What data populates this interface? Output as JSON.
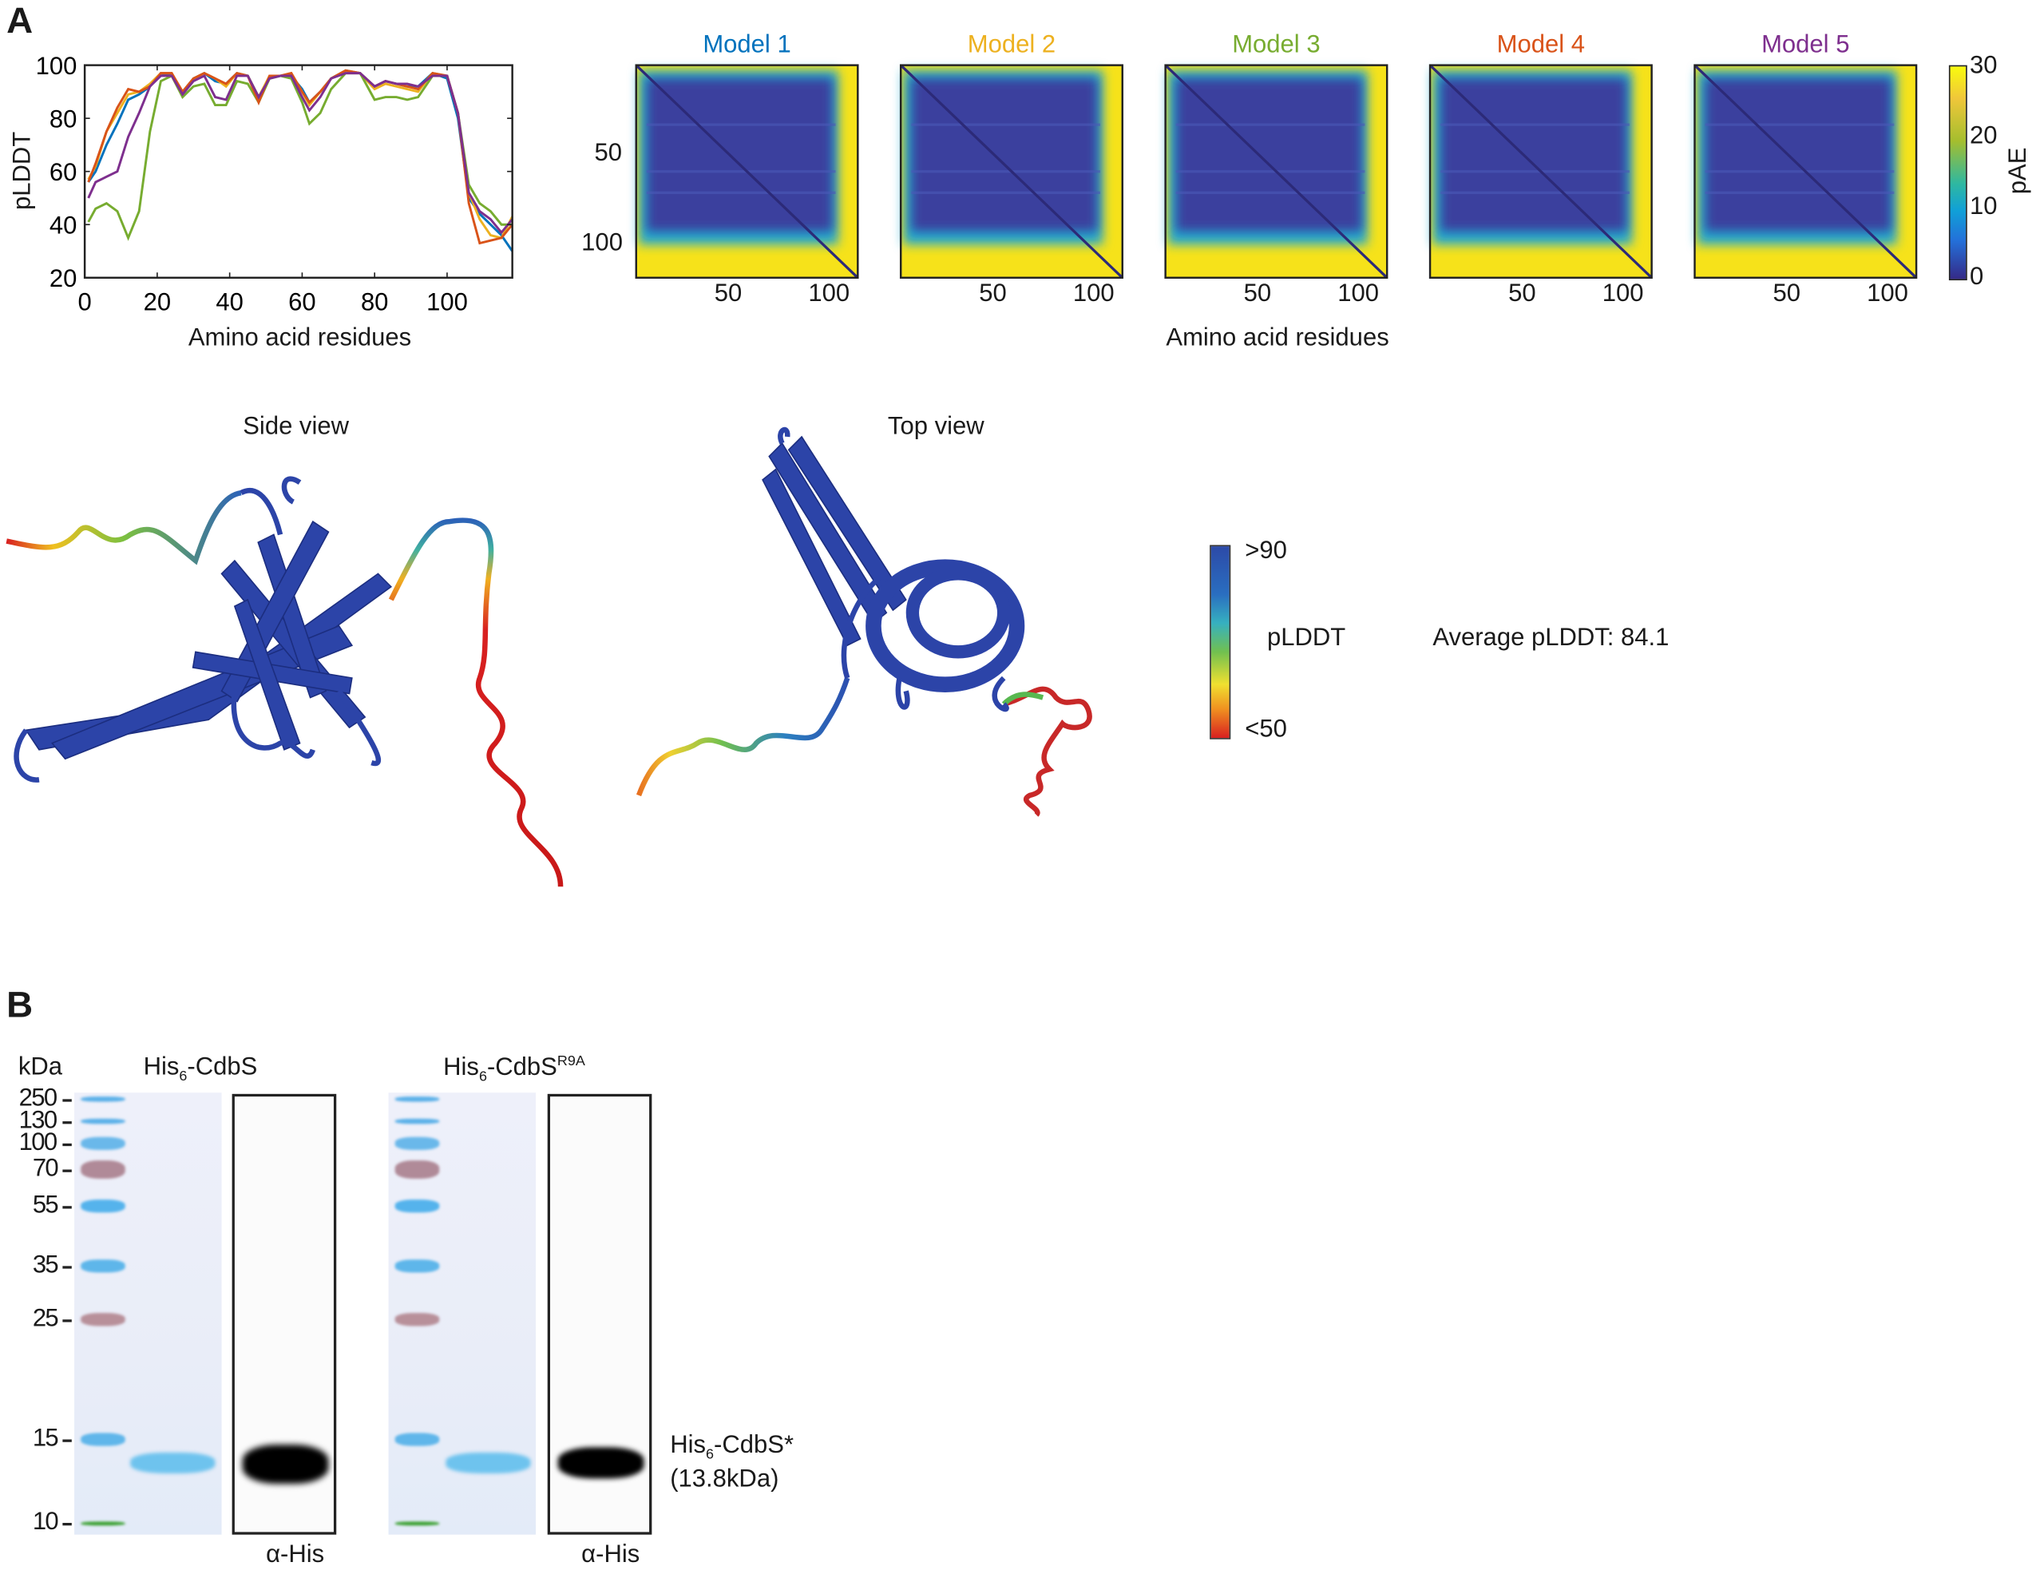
{
  "panels": {
    "a": "A",
    "b": "B"
  },
  "chart_data": [
    {
      "type": "line",
      "title": "",
      "xlabel": "Amino acid residues",
      "ylabel": "pLDDT",
      "xlim": [
        0,
        118
      ],
      "ylim": [
        20,
        100
      ],
      "xticks": [
        0,
        20,
        40,
        60,
        80,
        100
      ],
      "yticks": [
        20,
        40,
        60,
        80,
        100
      ],
      "x": [
        1,
        3,
        6,
        9,
        12,
        15,
        18,
        21,
        24,
        27,
        30,
        33,
        36,
        39,
        42,
        45,
        48,
        51,
        54,
        57,
        60,
        62,
        65,
        68,
        72,
        76,
        80,
        83,
        86,
        89,
        92,
        96,
        100,
        103,
        106,
        109,
        112,
        115,
        118
      ],
      "series": [
        {
          "name": "Model 1",
          "color": "#0072BD",
          "values": [
            56,
            60,
            70,
            78,
            87,
            89,
            92,
            97,
            96,
            90,
            95,
            97,
            94,
            93,
            97,
            96,
            88,
            95,
            96,
            96,
            91,
            86,
            90,
            95,
            98,
            97,
            92,
            94,
            93,
            92,
            92,
            97,
            95,
            80,
            50,
            44,
            40,
            36,
            30
          ]
        },
        {
          "name": "Model 2",
          "color": "#EDB120",
          "values": [
            57,
            62,
            75,
            82,
            89,
            90,
            93,
            97,
            97,
            90,
            95,
            97,
            95,
            92,
            97,
            96,
            88,
            96,
            96,
            97,
            90,
            85,
            90,
            95,
            98,
            97,
            91,
            93,
            92,
            91,
            90,
            97,
            96,
            82,
            52,
            42,
            36,
            35,
            43
          ]
        },
        {
          "name": "Model 3",
          "color": "#77AC30",
          "values": [
            41,
            46,
            48,
            45,
            35,
            45,
            75,
            94,
            96,
            88,
            92,
            93,
            85,
            85,
            94,
            93,
            86,
            95,
            96,
            95,
            86,
            78,
            82,
            91,
            97,
            97,
            87,
            88,
            88,
            87,
            88,
            96,
            96,
            82,
            55,
            48,
            45,
            40,
            40
          ]
        },
        {
          "name": "Model 4",
          "color": "#D95319",
          "values": [
            56,
            63,
            75,
            84,
            91,
            90,
            92,
            97,
            97,
            90,
            95,
            97,
            95,
            93,
            97,
            96,
            86,
            96,
            96,
            97,
            90,
            86,
            90,
            95,
            98,
            97,
            92,
            94,
            93,
            92,
            91,
            97,
            96,
            82,
            48,
            33,
            34,
            35,
            40
          ]
        },
        {
          "name": "Model 5",
          "color": "#7E2F8E",
          "values": [
            50,
            56,
            58,
            60,
            73,
            82,
            92,
            96,
            96,
            89,
            94,
            96,
            88,
            87,
            96,
            96,
            88,
            95,
            96,
            96,
            88,
            83,
            88,
            95,
            97,
            97,
            92,
            94,
            93,
            93,
            92,
            96,
            96,
            82,
            52,
            45,
            42,
            37,
            42
          ]
        }
      ]
    },
    {
      "type": "heatmap",
      "xlabel": "Amino acid residues",
      "colorbar_label": "pAE",
      "colorbar_range": [
        0,
        30
      ],
      "colorbar_ticks": [
        "30",
        "20",
        "10",
        "0"
      ],
      "yticks": [
        "50",
        "100"
      ],
      "xticks": [
        "50",
        "100"
      ],
      "models": [
        {
          "name": "Model 1",
          "color": "#0072BD"
        },
        {
          "name": "Model 2",
          "color": "#EDB120"
        },
        {
          "name": "Model 3",
          "color": "#77AC30"
        },
        {
          "name": "Model 4",
          "color": "#D95319"
        },
        {
          "name": "Model 5",
          "color": "#7E2F8E"
        }
      ]
    }
  ],
  "structure": {
    "side_view": "Side view",
    "top_view": "Top view",
    "legend_high": ">90",
    "legend_title": "pLDDT",
    "legend_low": "<50",
    "average": "Average pLDDT: 84.1"
  },
  "gel": {
    "kda": "kDa",
    "markers": [
      "250",
      "130",
      "100",
      "70",
      "55",
      "35",
      "25",
      "15",
      "10"
    ],
    "lane1_title": {
      "main": "His",
      "sub": "6",
      "rest": "-CdbS"
    },
    "lane2_title": {
      "main": "His",
      "sub": "6",
      "rest": "-CdbS",
      "sup": "R9A"
    },
    "blot_label": "α-His",
    "band_label": {
      "main": "His",
      "sub": "6",
      "rest": "-CdbS*",
      "line2": "(13.8kDa)"
    }
  }
}
